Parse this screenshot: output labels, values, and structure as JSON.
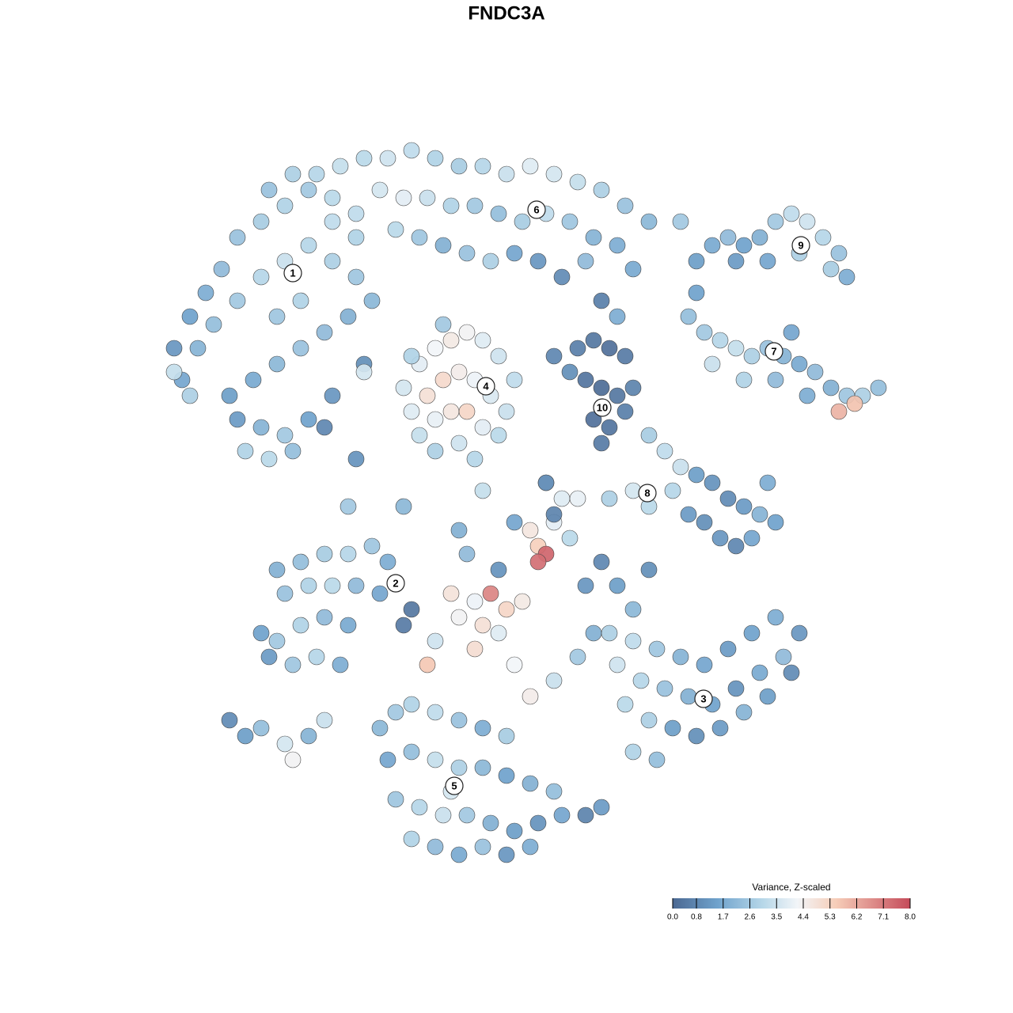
{
  "chart_data": {
    "type": "scatter",
    "title": "FNDC3A",
    "xlim": [
      19,
      113
    ],
    "ylim": [
      0,
      92
    ],
    "x": [
      22,
      24,
      26,
      28,
      30,
      33,
      36,
      39,
      42,
      45,
      23,
      25,
      27,
      30,
      33,
      36,
      39,
      42,
      45,
      47,
      29,
      32,
      35,
      38,
      41,
      44,
      30,
      33,
      36,
      39,
      42,
      31,
      34,
      37,
      22,
      46,
      41,
      24,
      35,
      38,
      34,
      37,
      40,
      43,
      46,
      49,
      52,
      55,
      58,
      61,
      64,
      67,
      70,
      73,
      76,
      79,
      82,
      48,
      51,
      54,
      57,
      60,
      63,
      66,
      69,
      72,
      75,
      78,
      50,
      53,
      56,
      59,
      62,
      65,
      68,
      71,
      74,
      45,
      42,
      80,
      51,
      53,
      55,
      57,
      59,
      61,
      63,
      65,
      52,
      54,
      56,
      58,
      60,
      62,
      64,
      53,
      55,
      57,
      59,
      61,
      63,
      55,
      58,
      60,
      52,
      56,
      73,
      75,
      77,
      79,
      74,
      76,
      78,
      80,
      75,
      77,
      79,
      76,
      70,
      72,
      88,
      90,
      92,
      94,
      96,
      98,
      100,
      102,
      104,
      106,
      107,
      105,
      93,
      97,
      101,
      87,
      89,
      91,
      93,
      95,
      97,
      99,
      101,
      103,
      105,
      107,
      109,
      111,
      90,
      94,
      98,
      102,
      106,
      108,
      88,
      100,
      82,
      84,
      86,
      85,
      88,
      90,
      92,
      94,
      96,
      98,
      89,
      91,
      93,
      95,
      87,
      97,
      82,
      80,
      77,
      35,
      38,
      41,
      44,
      47,
      49,
      36,
      39,
      42,
      45,
      48,
      52,
      51,
      33,
      35,
      38,
      41,
      44,
      34,
      37,
      40,
      43,
      29,
      31,
      33,
      36,
      37,
      39,
      41,
      57,
      60,
      62,
      64,
      66,
      58,
      61,
      63,
      68,
      69,
      68,
      67,
      70,
      72,
      55,
      54,
      60,
      65,
      67,
      70,
      73,
      75,
      74,
      76,
      78,
      80,
      82,
      63,
      59,
      71,
      73,
      69,
      65,
      77,
      80,
      83,
      86,
      89,
      92,
      95,
      98,
      101,
      78,
      81,
      84,
      87,
      90,
      93,
      96,
      99,
      79,
      82,
      85,
      88,
      91,
      94,
      80,
      83,
      97,
      100,
      48,
      50,
      52,
      55,
      58,
      61,
      64,
      49,
      52,
      55,
      58,
      61,
      64,
      67,
      70,
      50,
      53,
      56,
      59,
      62,
      65,
      68,
      71,
      74,
      76,
      55,
      58,
      61,
      64,
      67,
      52,
      57,
      44,
      51,
      58,
      61,
      69,
      70,
      46,
      45,
      86,
      76,
      78
    ],
    "y": [
      66,
      70,
      73,
      76,
      80,
      82,
      84,
      86,
      85,
      83,
      62,
      66,
      69,
      72,
      75,
      77,
      79,
      77,
      75,
      72,
      60,
      62,
      64,
      66,
      68,
      70,
      57,
      56,
      55,
      57,
      60,
      53,
      52,
      53,
      63,
      64,
      56,
      60,
      70,
      72,
      86,
      88,
      88,
      89,
      90,
      90,
      91,
      90,
      89,
      89,
      88,
      89,
      88,
      87,
      86,
      84,
      82,
      86,
      85,
      85,
      84,
      84,
      83,
      82,
      83,
      82,
      80,
      79,
      81,
      80,
      79,
      78,
      77,
      78,
      77,
      75,
      77,
      80,
      82,
      76,
      61,
      64,
      66,
      67,
      68,
      67,
      65,
      62,
      58,
      60,
      62,
      63,
      62,
      60,
      58,
      55,
      57,
      58,
      58,
      56,
      55,
      53,
      54,
      52,
      65,
      69,
      66,
      67,
      66,
      65,
      62,
      61,
      60,
      61,
      57,
      56,
      58,
      54,
      65,
      63,
      77,
      79,
      80,
      79,
      80,
      82,
      83,
      82,
      80,
      78,
      75,
      76,
      77,
      77,
      78,
      70,
      68,
      67,
      66,
      65,
      66,
      65,
      64,
      63,
      61,
      60,
      60,
      61,
      64,
      62,
      62,
      60,
      58,
      59,
      73,
      68,
      55,
      53,
      51,
      48,
      50,
      49,
      47,
      46,
      45,
      44,
      44,
      42,
      41,
      42,
      45,
      49,
      46,
      48,
      47,
      38,
      39,
      40,
      40,
      41,
      39,
      35,
      36,
      36,
      36,
      35,
      33,
      31,
      30,
      29,
      31,
      32,
      31,
      27,
      26,
      27,
      26,
      19,
      17,
      18,
      16,
      14,
      17,
      19,
      35,
      34,
      35,
      33,
      34,
      32,
      31,
      30,
      41,
      40,
      39,
      43,
      44,
      42,
      29,
      26,
      28,
      26,
      22,
      24,
      27,
      30,
      36,
      39,
      36,
      33,
      38,
      38,
      40,
      47,
      47,
      49,
      44,
      30,
      29,
      28,
      27,
      26,
      28,
      30,
      32,
      30,
      26,
      24,
      23,
      22,
      21,
      23,
      25,
      27,
      21,
      19,
      18,
      17,
      18,
      20,
      15,
      14,
      22,
      25,
      18,
      20,
      21,
      20,
      19,
      18,
      17,
      14,
      15,
      14,
      13,
      13,
      12,
      11,
      10,
      9,
      8,
      7,
      7,
      6,
      5,
      6,
      7,
      7,
      8,
      3,
      2,
      3,
      2,
      3,
      4,
      10,
      46,
      46,
      43,
      48,
      49,
      45,
      63,
      52,
      82,
      72,
      70
    ],
    "values": [
      1.2,
      1.5,
      1.8,
      2.2,
      2.4,
      2.7,
      2.9,
      2.6,
      3.1,
      3.2,
      1.6,
      2.0,
      2.3,
      2.6,
      3.0,
      3.4,
      3.0,
      2.8,
      2.5,
      2.1,
      1.4,
      1.7,
      2.1,
      2.4,
      2.2,
      1.9,
      1.3,
      2.0,
      2.6,
      1.5,
      1.2,
      2.9,
      3.1,
      2.3,
      3.3,
      1.0,
      0.8,
      2.8,
      2.5,
      2.9,
      2.4,
      2.8,
      3.0,
      3.3,
      3.1,
      3.5,
      3.2,
      2.9,
      2.7,
      3.0,
      3.4,
      3.8,
      3.6,
      3.3,
      2.8,
      2.4,
      2.1,
      3.6,
      3.9,
      3.4,
      2.9,
      2.6,
      2.3,
      2.7,
      3.2,
      2.5,
      2.0,
      1.8,
      3.1,
      2.5,
      1.9,
      2.4,
      2.8,
      1.6,
      1.2,
      0.9,
      2.2,
      2.9,
      3.2,
      1.7,
      3.6,
      3.9,
      4.2,
      4.6,
      4.3,
      3.8,
      3.5,
      3.2,
      3.8,
      4.9,
      5.1,
      4.5,
      4.1,
      3.7,
      3.4,
      3.3,
      4.0,
      4.7,
      5.2,
      3.9,
      3.1,
      2.8,
      3.5,
      3.0,
      2.9,
      2.6,
      0.6,
      0.4,
      0.2,
      0.5,
      0.3,
      0.1,
      0.4,
      0.7,
      0.2,
      0.3,
      0.6,
      0.5,
      0.8,
      1.0,
      1.4,
      1.7,
      2.2,
      1.5,
      1.9,
      2.6,
      3.2,
      3.5,
      3.0,
      2.4,
      1.8,
      2.7,
      1.3,
      1.6,
      2.8,
      2.3,
      2.6,
      3.0,
      3.3,
      2.8,
      2.4,
      2.0,
      1.7,
      2.2,
      1.9,
      2.5,
      2.8,
      2.3,
      3.4,
      2.9,
      2.2,
      1.8,
      6.0,
      5.7,
      1.5,
      1.6,
      2.7,
      3.2,
      3.4,
      3.0,
      1.4,
      1.1,
      0.9,
      1.3,
      2.0,
      1.5,
      1.0,
      1.2,
      0.8,
      1.6,
      1.3,
      1.8,
      3.1,
      3.6,
      2.8,
      1.9,
      2.3,
      2.7,
      3.0,
      2.5,
      1.8,
      2.4,
      2.9,
      3.1,
      2.2,
      1.6,
      0.4,
      0.5,
      1.5,
      2.6,
      2.9,
      2.2,
      1.7,
      1.3,
      2.5,
      3.0,
      1.8,
      0.9,
      1.4,
      2.3,
      3.6,
      4.3,
      2.0,
      3.4,
      4.8,
      4.1,
      6.9,
      5.2,
      4.6,
      4.3,
      4.9,
      3.8,
      5.4,
      7.5,
      7.3,
      4.7,
      3.9,
      3.1,
      3.5,
      5.6,
      5.0,
      4.2,
      4.5,
      3.4,
      2.6,
      1.9,
      1.2,
      0.8,
      1.4,
      2.1,
      1.0,
      1.1,
      2.2,
      3.8,
      4.0,
      3.2,
      1.6,
      2.8,
      3.2,
      2.5,
      2.0,
      1.6,
      1.3,
      1.5,
      1.8,
      1.2,
      3.5,
      3.0,
      2.4,
      1.9,
      1.5,
      1.1,
      1.7,
      2.2,
      3.1,
      2.8,
      1.4,
      1.0,
      1.3,
      2.0,
      2.9,
      2.3,
      1.4,
      0.9,
      2.1,
      2.6,
      2.9,
      3.2,
      2.4,
      1.8,
      2.7,
      1.6,
      2.3,
      3.3,
      2.8,
      2.1,
      1.5,
      1.9,
      2.3,
      2.5,
      3.0,
      3.4,
      2.6,
      1.9,
      1.4,
      1.1,
      1.6,
      0.7,
      1.3,
      2.2,
      1.7,
      2.4,
      1.2,
      1.8,
      2.9,
      3.6,
      2.6,
      2.1,
      1.9,
      3.3,
      0.9,
      0.7,
      3.6,
      1.1,
      2.6,
      0.6,
      1.8
    ],
    "annotations": [
      {
        "text": "1",
        "x": 37,
        "y": 75.5
      },
      {
        "text": "2",
        "x": 50,
        "y": 36.3
      },
      {
        "text": "3",
        "x": 88.9,
        "y": 21.7
      },
      {
        "text": "4",
        "x": 61.4,
        "y": 61.2
      },
      {
        "text": "5",
        "x": 57.4,
        "y": 10.7
      },
      {
        "text": "6",
        "x": 67.8,
        "y": 83.5
      },
      {
        "text": "7",
        "x": 97.8,
        "y": 65.6
      },
      {
        "text": "8",
        "x": 81.8,
        "y": 47.7
      },
      {
        "text": "9",
        "x": 101.2,
        "y": 79
      },
      {
        "text": "10",
        "x": 76.1,
        "y": 58.5
      }
    ],
    "colorscale": [
      [
        0,
        "#4b6892"
      ],
      [
        1.5,
        "#6fa2cc"
      ],
      [
        3,
        "#b5d6e8"
      ],
      [
        4.2,
        "#f2f5f8"
      ],
      [
        5.5,
        "#f6cdb8"
      ],
      [
        8,
        "#c54b5a"
      ]
    ],
    "colorbar": {
      "title": "Variance, Z-scaled",
      "lim": [
        0,
        8
      ],
      "ticks": [
        {
          "value": 0,
          "label": "0.0"
        },
        0.8,
        1.7,
        2.6,
        3.5,
        4.4,
        5.3,
        6.2,
        7.1,
        {
          "value": 8,
          "label": "8.0"
        }
      ]
    }
  }
}
